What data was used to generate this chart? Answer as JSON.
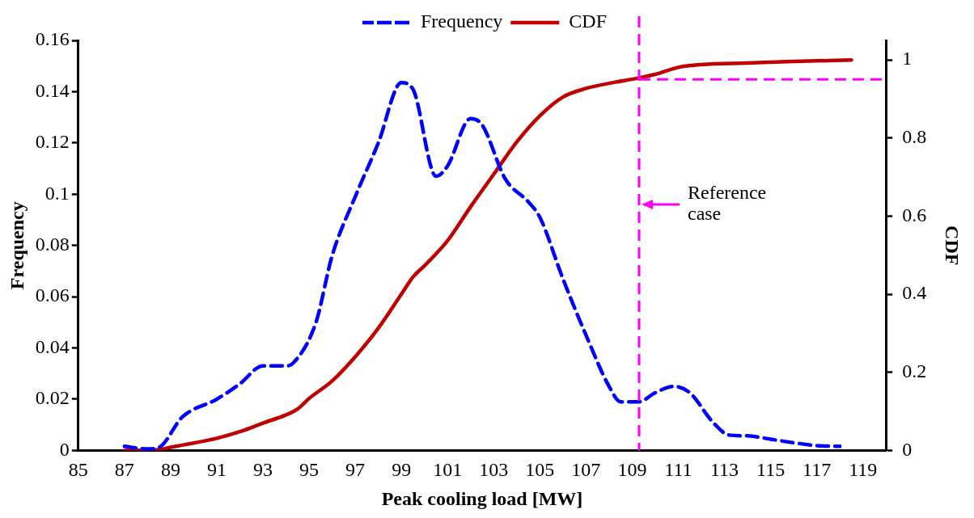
{
  "chart_data": {
    "type": "line",
    "xlabel": "Peak cooling load [MW]",
    "ylabel": "Frequency",
    "y2label": "CDF",
    "xlim": [
      85,
      120
    ],
    "xticks": [
      85,
      87,
      89,
      91,
      93,
      95,
      97,
      99,
      101,
      103,
      105,
      107,
      109,
      111,
      113,
      115,
      117,
      119
    ],
    "ylim": [
      0,
      0.16
    ],
    "yticks": [
      0,
      0.02,
      0.04,
      0.06,
      0.08,
      0.1,
      0.12,
      0.14,
      0.16
    ],
    "y2lim": [
      0,
      1.05
    ],
    "y2ticks": [
      0,
      0.2,
      0.4,
      0.6,
      0.8,
      1
    ],
    "legend": "top",
    "marker": "none",
    "grid": false,
    "series": [
      {
        "name": "Frequency",
        "color": "#0000ff",
        "line_style": "dashed",
        "x": [
          87,
          88,
          88.5,
          89.5,
          91,
          92,
          93,
          94,
          94.3,
          95.3,
          96,
          97,
          98,
          99,
          99.5,
          100.5,
          101,
          102,
          102.5,
          103.5,
          104.5,
          105,
          106,
          107,
          108,
          108.5,
          109.3,
          110,
          110.8,
          111.5,
          112.5,
          113.2,
          114,
          115,
          116,
          117,
          118
        ],
        "values": [
          0.0016,
          0.0006,
          0.0012,
          0.013,
          0.02,
          0.026,
          0.033,
          0.033,
          0.034,
          0.05,
          0.076,
          0.099,
          0.12,
          0.1435,
          0.141,
          0.107,
          0.111,
          0.1295,
          0.127,
          0.106,
          0.097,
          0.091,
          0.067,
          0.045,
          0.025,
          0.019,
          0.019,
          0.0225,
          0.025,
          0.0225,
          0.011,
          0.006,
          0.0057,
          0.0044,
          0.003,
          0.0019,
          0.0016
        ]
      },
      {
        "name": "CDF",
        "color": "#c00000",
        "line_style": "solid",
        "axis": "y2",
        "x": [
          87,
          88.5,
          89,
          90,
          91,
          92,
          93,
          94,
          94.5,
          95,
          96,
          97,
          98,
          99,
          99.5,
          100,
          101,
          102,
          103,
          104,
          105,
          106,
          107,
          108,
          109.3,
          110,
          111,
          112,
          114,
          116,
          118.5
        ],
        "values": [
          0,
          0.002,
          0.008,
          0.019,
          0.031,
          0.048,
          0.07,
          0.091,
          0.106,
          0.133,
          0.178,
          0.24,
          0.313,
          0.4,
          0.444,
          0.473,
          0.537,
          0.624,
          0.707,
          0.79,
          0.857,
          0.905,
          0.927,
          0.94,
          0.954,
          0.963,
          0.981,
          0.988,
          0.992,
          0.996,
          1
        ]
      }
    ],
    "ref_lines": [
      {
        "axis": "x",
        "value": 109.3,
        "label": "Reference case",
        "color": "#ff00ff",
        "line_style": "dashed"
      },
      {
        "axis": "y2",
        "value": 0.95,
        "color": "#ff00ff",
        "line_style": "dashed"
      }
    ]
  }
}
